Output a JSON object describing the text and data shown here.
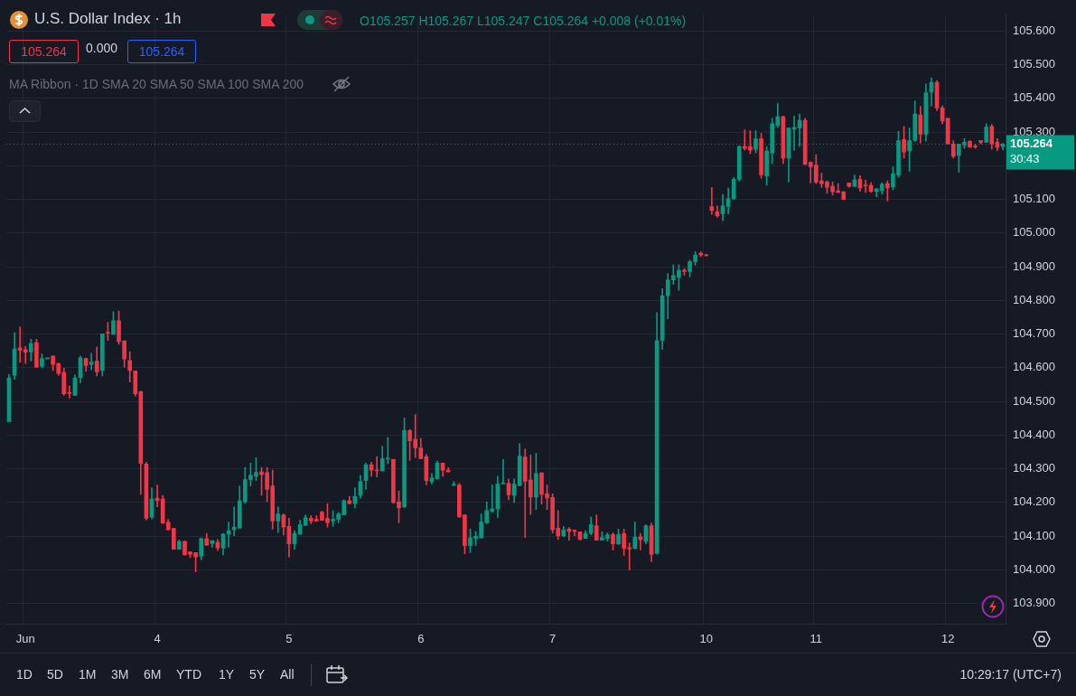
{
  "chart_data": {
    "type": "candlestick",
    "title": "U.S. Dollar Index · 1h",
    "categories": [
      null,
      null,
      null,
      "Jun",
      null,
      null,
      null,
      null,
      null,
      null,
      null,
      null,
      null,
      null,
      null,
      null,
      null,
      null,
      null,
      null,
      null,
      null,
      null,
      null,
      null,
      null,
      null,
      "4",
      null,
      null,
      null,
      null,
      null,
      null,
      null,
      null,
      null,
      null,
      null,
      null,
      null,
      null,
      null,
      null,
      null,
      null,
      null,
      null,
      null,
      null,
      null,
      "5",
      null,
      null,
      null,
      null,
      null,
      null,
      null,
      null,
      null,
      null,
      null,
      null,
      null,
      null,
      null,
      null,
      null,
      null,
      null,
      null,
      null,
      null,
      null,
      "6",
      null,
      null,
      null,
      null,
      null,
      null,
      null,
      null,
      null,
      null,
      null,
      null,
      null,
      null,
      null,
      null,
      null,
      null,
      null,
      null,
      null,
      null,
      null,
      "7",
      null,
      null,
      null,
      null,
      null,
      null,
      null,
      null,
      null,
      null,
      null,
      null,
      null,
      null,
      null,
      null,
      null,
      null,
      null,
      null,
      null,
      null,
      null,
      null,
      null,
      null,
      null,
      "10",
      null,
      null,
      null,
      null,
      null,
      null,
      null,
      null,
      null,
      null,
      null,
      null,
      null,
      null,
      null,
      null,
      null,
      null,
      null,
      "11",
      null,
      null,
      null,
      null,
      null,
      null,
      null,
      null,
      null,
      null,
      null,
      null,
      null,
      null,
      null,
      null,
      null,
      null,
      null,
      null,
      null,
      null,
      null,
      "12",
      null,
      null,
      null,
      null,
      null,
      null,
      null,
      null,
      null,
      null
    ],
    "ohlc": [
      [
        104.44,
        104.58,
        104.44,
        104.57
      ],
      [
        104.578,
        104.704,
        104.566,
        104.656
      ],
      [
        104.659,
        104.722,
        104.617,
        104.652
      ],
      [
        104.654,
        104.664,
        104.613,
        104.646
      ],
      [
        104.647,
        104.685,
        104.62,
        104.672
      ],
      [
        104.675,
        104.685,
        104.602,
        104.602
      ],
      [
        104.605,
        104.641,
        104.6,
        104.627
      ],
      [
        104.627,
        104.628,
        104.626,
        104.628
      ],
      [
        104.635,
        104.635,
        104.592,
        104.61
      ],
      [
        104.612,
        104.614,
        104.578,
        104.583
      ],
      [
        104.586,
        104.599,
        104.518,
        104.523
      ],
      [
        104.526,
        104.546,
        104.51,
        104.524
      ],
      [
        104.518,
        104.579,
        104.518,
        104.57
      ],
      [
        104.571,
        104.635,
        104.555,
        104.63
      ],
      [
        104.628,
        104.629,
        104.589,
        104.607
      ],
      [
        104.61,
        104.643,
        104.594,
        104.617
      ],
      [
        104.62,
        104.662,
        104.576,
        104.588
      ],
      [
        104.592,
        104.701,
        104.576,
        104.701
      ],
      [
        104.704,
        104.735,
        104.681,
        104.703
      ],
      [
        104.699,
        104.767,
        104.699,
        104.74
      ],
      [
        104.74,
        104.769,
        104.67,
        104.678
      ],
      [
        104.68,
        104.68,
        104.602,
        104.626
      ],
      [
        104.622,
        104.648,
        104.558,
        104.592
      ],
      [
        104.591,
        104.591,
        104.516,
        104.523
      ],
      [
        104.53,
        104.53,
        104.224,
        104.316
      ],
      [
        104.314,
        104.32,
        104.148,
        104.153
      ],
      [
        104.156,
        104.244,
        104.151,
        104.21
      ],
      [
        104.213,
        104.252,
        104.187,
        104.206
      ],
      [
        104.21,
        104.221,
        104.138,
        104.138
      ],
      [
        104.142,
        104.15,
        104.119,
        104.119
      ],
      [
        104.123,
        104.123,
        104.061,
        104.061
      ],
      [
        104.061,
        104.089,
        104.061,
        104.084
      ],
      [
        104.085,
        104.085,
        104.044,
        104.044
      ],
      [
        104.053,
        104.053,
        104.036,
        104.046
      ],
      [
        104.051,
        104.051,
        103.994,
        104.038
      ],
      [
        104.041,
        104.095,
        104.031,
        104.093
      ],
      [
        104.093,
        104.108,
        104.073,
        104.073
      ],
      [
        104.078,
        104.087,
        104.067,
        104.087
      ],
      [
        104.082,
        104.09,
        104.057,
        104.065
      ],
      [
        104.065,
        104.108,
        104.044,
        104.106
      ],
      [
        104.106,
        104.142,
        104.067,
        104.116
      ],
      [
        104.119,
        104.187,
        104.101,
        104.127
      ],
      [
        104.124,
        104.249,
        104.124,
        104.205
      ],
      [
        104.202,
        104.304,
        104.197,
        104.268
      ],
      [
        104.268,
        104.317,
        104.249,
        104.281
      ],
      [
        104.278,
        104.333,
        104.265,
        104.289
      ],
      [
        104.291,
        104.304,
        104.221,
        104.283
      ],
      [
        104.289,
        104.304,
        104.202,
        104.239
      ],
      [
        104.249,
        104.296,
        104.121,
        104.145
      ],
      [
        104.145,
        104.187,
        104.111,
        104.166
      ],
      [
        104.163,
        104.166,
        104.103,
        104.127
      ],
      [
        104.129,
        104.153,
        104.038,
        104.077
      ],
      [
        104.077,
        104.116,
        104.061,
        104.108
      ],
      [
        104.106,
        104.147,
        104.106,
        104.134
      ],
      [
        104.132,
        104.163,
        104.132,
        104.155
      ],
      [
        104.153,
        104.161,
        104.137,
        104.145
      ],
      [
        104.15,
        104.161,
        104.145,
        104.145
      ],
      [
        104.171,
        104.174,
        104.147,
        104.147
      ],
      [
        104.153,
        104.197,
        104.127,
        104.14
      ],
      [
        104.145,
        104.176,
        104.129,
        104.15
      ],
      [
        104.15,
        104.171,
        104.14,
        104.166
      ],
      [
        104.163,
        104.208,
        104.163,
        104.205
      ],
      [
        104.205,
        104.218,
        104.195,
        104.197
      ],
      [
        104.197,
        104.244,
        104.184,
        104.218
      ],
      [
        104.221,
        104.281,
        104.213,
        104.262
      ],
      [
        104.265,
        104.317,
        104.239,
        104.312
      ],
      [
        104.312,
        104.32,
        104.278,
        104.296
      ],
      [
        104.296,
        104.336,
        104.276,
        104.294
      ],
      [
        104.294,
        104.367,
        104.294,
        104.33
      ],
      [
        104.329,
        104.393,
        104.315,
        104.331
      ],
      [
        104.328,
        104.328,
        104.197,
        104.2
      ],
      [
        104.202,
        104.234,
        104.14,
        104.184
      ],
      [
        104.187,
        104.451,
        104.184,
        104.414
      ],
      [
        104.414,
        104.417,
        104.325,
        104.383
      ],
      [
        104.388,
        104.461,
        104.333,
        104.362
      ],
      [
        104.362,
        104.39,
        104.33,
        104.33
      ],
      [
        104.336,
        104.343,
        104.252,
        104.265
      ],
      [
        104.262,
        104.286,
        104.255,
        104.273
      ],
      [
        104.27,
        104.323,
        104.27,
        104.317
      ],
      [
        104.317,
        104.317,
        104.278,
        104.296
      ],
      [
        104.296,
        104.304,
        104.291,
        104.291
      ],
      [
        104.251,
        104.262,
        104.25,
        104.253
      ],
      [
        104.252,
        104.257,
        104.155,
        104.158
      ],
      [
        104.163,
        104.163,
        104.048,
        104.072
      ],
      [
        104.072,
        104.121,
        104.051,
        104.095
      ],
      [
        104.093,
        104.114,
        104.072,
        104.1
      ],
      [
        104.095,
        104.166,
        104.095,
        104.142
      ],
      [
        104.14,
        104.202,
        104.137,
        104.176
      ],
      [
        104.174,
        104.252,
        104.171,
        104.181
      ],
      [
        104.181,
        104.278,
        104.155,
        104.255
      ],
      [
        104.255,
        104.328,
        104.255,
        104.257
      ],
      [
        104.257,
        104.27,
        104.208,
        104.223
      ],
      [
        104.221,
        104.27,
        104.2,
        104.255
      ],
      [
        104.25,
        104.375,
        104.25,
        104.338
      ],
      [
        104.335,
        104.359,
        104.096,
        104.263
      ],
      [
        104.267,
        104.341,
        104.164,
        104.216
      ],
      [
        104.216,
        104.346,
        104.179,
        104.286
      ],
      [
        104.288,
        104.288,
        104.195,
        104.224
      ],
      [
        104.226,
        104.252,
        104.179,
        104.213
      ],
      [
        104.215,
        104.226,
        104.109,
        104.119
      ],
      [
        104.124,
        104.176,
        104.09,
        104.101
      ],
      [
        104.101,
        104.129,
        104.098,
        104.118
      ],
      [
        104.121,
        104.126,
        104.088,
        104.114
      ],
      [
        104.118,
        104.118,
        104.101,
        104.114
      ],
      [
        104.113,
        104.113,
        104.09,
        104.09
      ],
      [
        104.093,
        104.116,
        104.093,
        104.108
      ],
      [
        104.109,
        104.157,
        104.104,
        104.134
      ],
      [
        104.131,
        104.163,
        104.088,
        104.088
      ],
      [
        104.088,
        104.113,
        104.088,
        104.096
      ],
      [
        104.093,
        104.11,
        104.085,
        104.104
      ],
      [
        104.105,
        104.11,
        104.059,
        104.077
      ],
      [
        104.077,
        104.121,
        104.075,
        104.105
      ],
      [
        104.108,
        104.121,
        104.043,
        104.064
      ],
      [
        104.066,
        104.08,
        103.999,
        104.062
      ],
      [
        104.064,
        104.142,
        104.062,
        104.097
      ],
      [
        104.098,
        104.108,
        104.059,
        104.09
      ],
      [
        104.085,
        104.134,
        104.077,
        104.131
      ],
      [
        104.131,
        104.139,
        104.025,
        104.046
      ],
      [
        104.049,
        104.764,
        104.046,
        104.681
      ],
      [
        104.681,
        104.835,
        104.655,
        104.814
      ],
      [
        104.814,
        104.88,
        104.746,
        104.861
      ],
      [
        104.861,
        104.906,
        104.848,
        104.874
      ],
      [
        104.869,
        104.906,
        104.83,
        104.89
      ],
      [
        104.89,
        104.895,
        104.875,
        104.886
      ],
      [
        104.886,
        104.92,
        104.87,
        104.915
      ],
      [
        104.915,
        104.945,
        104.905,
        104.935
      ],
      [
        104.94,
        104.945,
        104.93,
        104.935
      ],
      [
        104.935,
        104.937,
        104.932,
        104.933
      ],
      [
        105.079,
        105.136,
        105.056,
        105.067
      ],
      [
        105.063,
        105.081,
        105.047,
        105.052
      ],
      [
        105.058,
        105.115,
        105.037,
        105.081
      ],
      [
        105.079,
        105.134,
        105.058,
        105.102
      ],
      [
        105.102,
        105.165,
        105.1,
        105.16
      ],
      [
        105.16,
        105.259,
        105.155,
        105.257
      ],
      [
        105.257,
        105.307,
        105.246,
        105.252
      ],
      [
        105.257,
        105.304,
        105.236,
        105.246
      ],
      [
        105.249,
        105.304,
        105.238,
        105.28
      ],
      [
        105.28,
        105.296,
        105.163,
        105.173
      ],
      [
        105.17,
        105.257,
        105.142,
        105.244
      ],
      [
        105.238,
        105.341,
        105.207,
        105.325
      ],
      [
        105.32,
        105.385,
        105.314,
        105.346
      ],
      [
        105.346,
        105.348,
        105.207,
        105.223
      ],
      [
        105.223,
        105.312,
        105.152,
        105.312
      ],
      [
        105.309,
        105.348,
        105.246,
        105.314
      ],
      [
        105.312,
        105.354,
        105.257,
        105.335
      ],
      [
        105.335,
        105.341,
        105.204,
        105.204
      ],
      [
        105.21,
        105.212,
        105.149,
        105.197
      ],
      [
        105.202,
        105.233,
        105.147,
        105.152
      ],
      [
        105.155,
        105.178,
        105.136,
        105.147
      ],
      [
        105.152,
        105.155,
        105.118,
        105.136
      ],
      [
        105.139,
        105.152,
        105.113,
        105.123
      ],
      [
        105.126,
        105.147,
        105.121,
        105.121
      ],
      [
        105.123,
        105.123,
        105.1,
        105.1
      ],
      [
        105.149,
        105.149,
        105.136,
        105.139
      ],
      [
        105.139,
        105.173,
        105.139,
        105.158
      ],
      [
        105.16,
        105.171,
        105.124,
        105.134
      ],
      [
        105.142,
        105.158,
        105.121,
        105.14
      ],
      [
        105.142,
        105.15,
        105.121,
        105.124
      ],
      [
        105.124,
        105.132,
        105.108,
        105.132
      ],
      [
        105.126,
        105.15,
        105.116,
        105.145
      ],
      [
        105.147,
        105.155,
        105.095,
        105.134
      ],
      [
        105.137,
        105.197,
        105.129,
        105.176
      ],
      [
        105.173,
        105.302,
        105.166,
        105.275
      ],
      [
        105.278,
        105.317,
        105.223,
        105.241
      ],
      [
        105.244,
        105.312,
        105.184,
        105.275
      ],
      [
        105.275,
        105.393,
        105.273,
        105.354
      ],
      [
        105.351,
        105.377,
        105.268,
        105.294
      ],
      [
        105.294,
        105.443,
        105.273,
        105.417
      ],
      [
        105.419,
        105.461,
        105.378,
        105.448
      ],
      [
        105.448,
        105.453,
        105.364,
        105.372
      ],
      [
        105.372,
        105.378,
        105.325,
        105.333
      ],
      [
        105.341,
        105.341,
        105.265,
        105.265
      ],
      [
        105.265,
        105.275,
        105.223,
        105.228
      ],
      [
        105.231,
        105.265,
        105.181,
        105.265
      ],
      [
        105.262,
        105.281,
        105.252,
        105.27
      ],
      [
        105.273,
        105.275,
        105.255,
        105.255
      ],
      [
        105.258,
        105.265,
        105.252,
        105.256
      ],
      [
        105.275,
        105.275,
        105.265,
        105.27
      ],
      [
        105.27,
        105.325,
        105.27,
        105.315
      ],
      [
        105.317,
        105.323,
        105.249,
        105.265
      ],
      [
        105.27,
        105.281,
        105.244,
        105.255
      ],
      [
        105.257,
        105.267,
        105.247,
        105.264
      ]
    ],
    "colors": [
      "#089981",
      "#089981",
      "#f23645",
      "#f23645",
      "#089981",
      "#f23645",
      "#089981",
      "#089981",
      "#f23645",
      "#f23645",
      "#f23645",
      "#f23645",
      "#089981",
      "#089981",
      "#f23645",
      "#089981",
      "#f23645",
      "#089981",
      "#f23645",
      "#089981",
      "#f23645",
      "#f23645",
      "#f23645",
      "#f23645",
      "#f23645",
      "#f23645",
      "#089981",
      "#f23645",
      "#f23645",
      "#f23645",
      "#f23645",
      "#089981",
      "#f23645",
      "#f23645",
      "#f23645",
      "#089981",
      "#f23645",
      "#089981",
      "#f23645",
      "#089981",
      "#089981",
      "#089981",
      "#089981",
      "#089981",
      "#089981",
      "#089981",
      "#f23645",
      "#f23645",
      "#f23645",
      "#089981",
      "#f23645",
      "#f23645",
      "#089981",
      "#089981",
      "#089981",
      "#f23645",
      "#f23645",
      "#f23645",
      "#f23645",
      "#089981",
      "#089981",
      "#089981",
      "#f23645",
      "#089981",
      "#089981",
      "#089981",
      "#f23645",
      "#f23645",
      "#089981",
      "#089981",
      "#f23645",
      "#f23645",
      "#089981",
      "#f23645",
      "#f23645",
      "#f23645",
      "#f23645",
      "#089981",
      "#089981",
      "#f23645",
      "#f23645",
      "#089981",
      "#f23645",
      "#f23645",
      "#089981",
      "#089981",
      "#089981",
      "#089981",
      "#089981",
      "#089981",
      "#089981",
      "#f23645",
      "#089981",
      "#089981",
      "#f23645",
      "#f23645",
      "#089981",
      "#f23645",
      "#f23645",
      "#f23645",
      "#f23645",
      "#089981",
      "#f23645",
      "#f23645",
      "#f23645",
      "#089981",
      "#089981",
      "#f23645",
      "#089981",
      "#089981",
      "#f23645",
      "#089981",
      "#f23645",
      "#f23645",
      "#089981",
      "#f23645",
      "#089981",
      "#f23645",
      "#089981",
      "#089981",
      "#089981",
      "#089981",
      "#089981",
      "#f23645",
      "#089981",
      "#089981",
      "#f23645",
      "#f23645",
      "#f23645",
      "#f23645",
      "#089981",
      "#089981",
      "#089981",
      "#089981",
      "#f23645",
      "#f23645",
      "#089981",
      "#f23645",
      "#089981",
      "#089981",
      "#089981",
      "#f23645",
      "#089981",
      "#089981",
      "#089981",
      "#f23645",
      "#f23645",
      "#f23645",
      "#f23645",
      "#f23645",
      "#f23645",
      "#f23645",
      "#f23645",
      "#f23645",
      "#089981",
      "#f23645",
      "#f23645",
      "#f23645",
      "#089981",
      "#089981",
      "#f23645",
      "#089981",
      "#089981",
      "#f23645",
      "#089981",
      "#089981",
      "#f23645",
      "#089981",
      "#089981",
      "#f23645",
      "#f23645",
      "#f23645",
      "#f23645",
      "#089981",
      "#089981",
      "#f23645",
      "#f23645",
      "#f23645",
      "#089981",
      "#f23645",
      "#f23645",
      "#089981"
    ],
    "ylim": [
      103.84,
      105.65
    ],
    "yticks": [
      {
        "value": 103.9,
        "label": "103.900"
      },
      {
        "value": 104.0,
        "label": "104.000"
      },
      {
        "value": 104.1,
        "label": "104.100"
      },
      {
        "value": 104.2,
        "label": "104.200"
      },
      {
        "value": 104.3,
        "label": "104.300"
      },
      {
        "value": 104.4,
        "label": "104.400"
      },
      {
        "value": 104.5,
        "label": "104.500"
      },
      {
        "value": 104.6,
        "label": "104.600"
      },
      {
        "value": 104.7,
        "label": "104.700"
      },
      {
        "value": 104.8,
        "label": "104.800"
      },
      {
        "value": 104.9,
        "label": "104.900"
      },
      {
        "value": 105.0,
        "label": "105.000"
      },
      {
        "value": 105.1,
        "label": "105.100"
      },
      {
        "value": 105.2,
        "label": null
      },
      {
        "value": 105.3,
        "label": "105.300"
      },
      {
        "value": 105.4,
        "label": "105.400"
      },
      {
        "value": 105.5,
        "label": "105.500"
      },
      {
        "value": 105.6,
        "label": "105.600"
      }
    ],
    "grid": true,
    "ref_lines": [
      {
        "axis": "y",
        "value": 105.264,
        "label": "105.264",
        "color": "#089981",
        "line_style": "dotted"
      }
    ],
    "annotations": [
      "O105.257 H105.267 L105.247 C105.264 +0.008 (+0.01%)",
      "105.264",
      "0.000",
      "105.264",
      "MA Ribbon · 1D SMA 20 SMA 50 SMA 100 SMA 200",
      "30:43",
      "1D",
      "5D",
      "1M",
      "3M",
      "6M",
      "YTD",
      "1Y",
      "5Y",
      "All",
      "10:29:17 (UTC+7)"
    ]
  }
}
